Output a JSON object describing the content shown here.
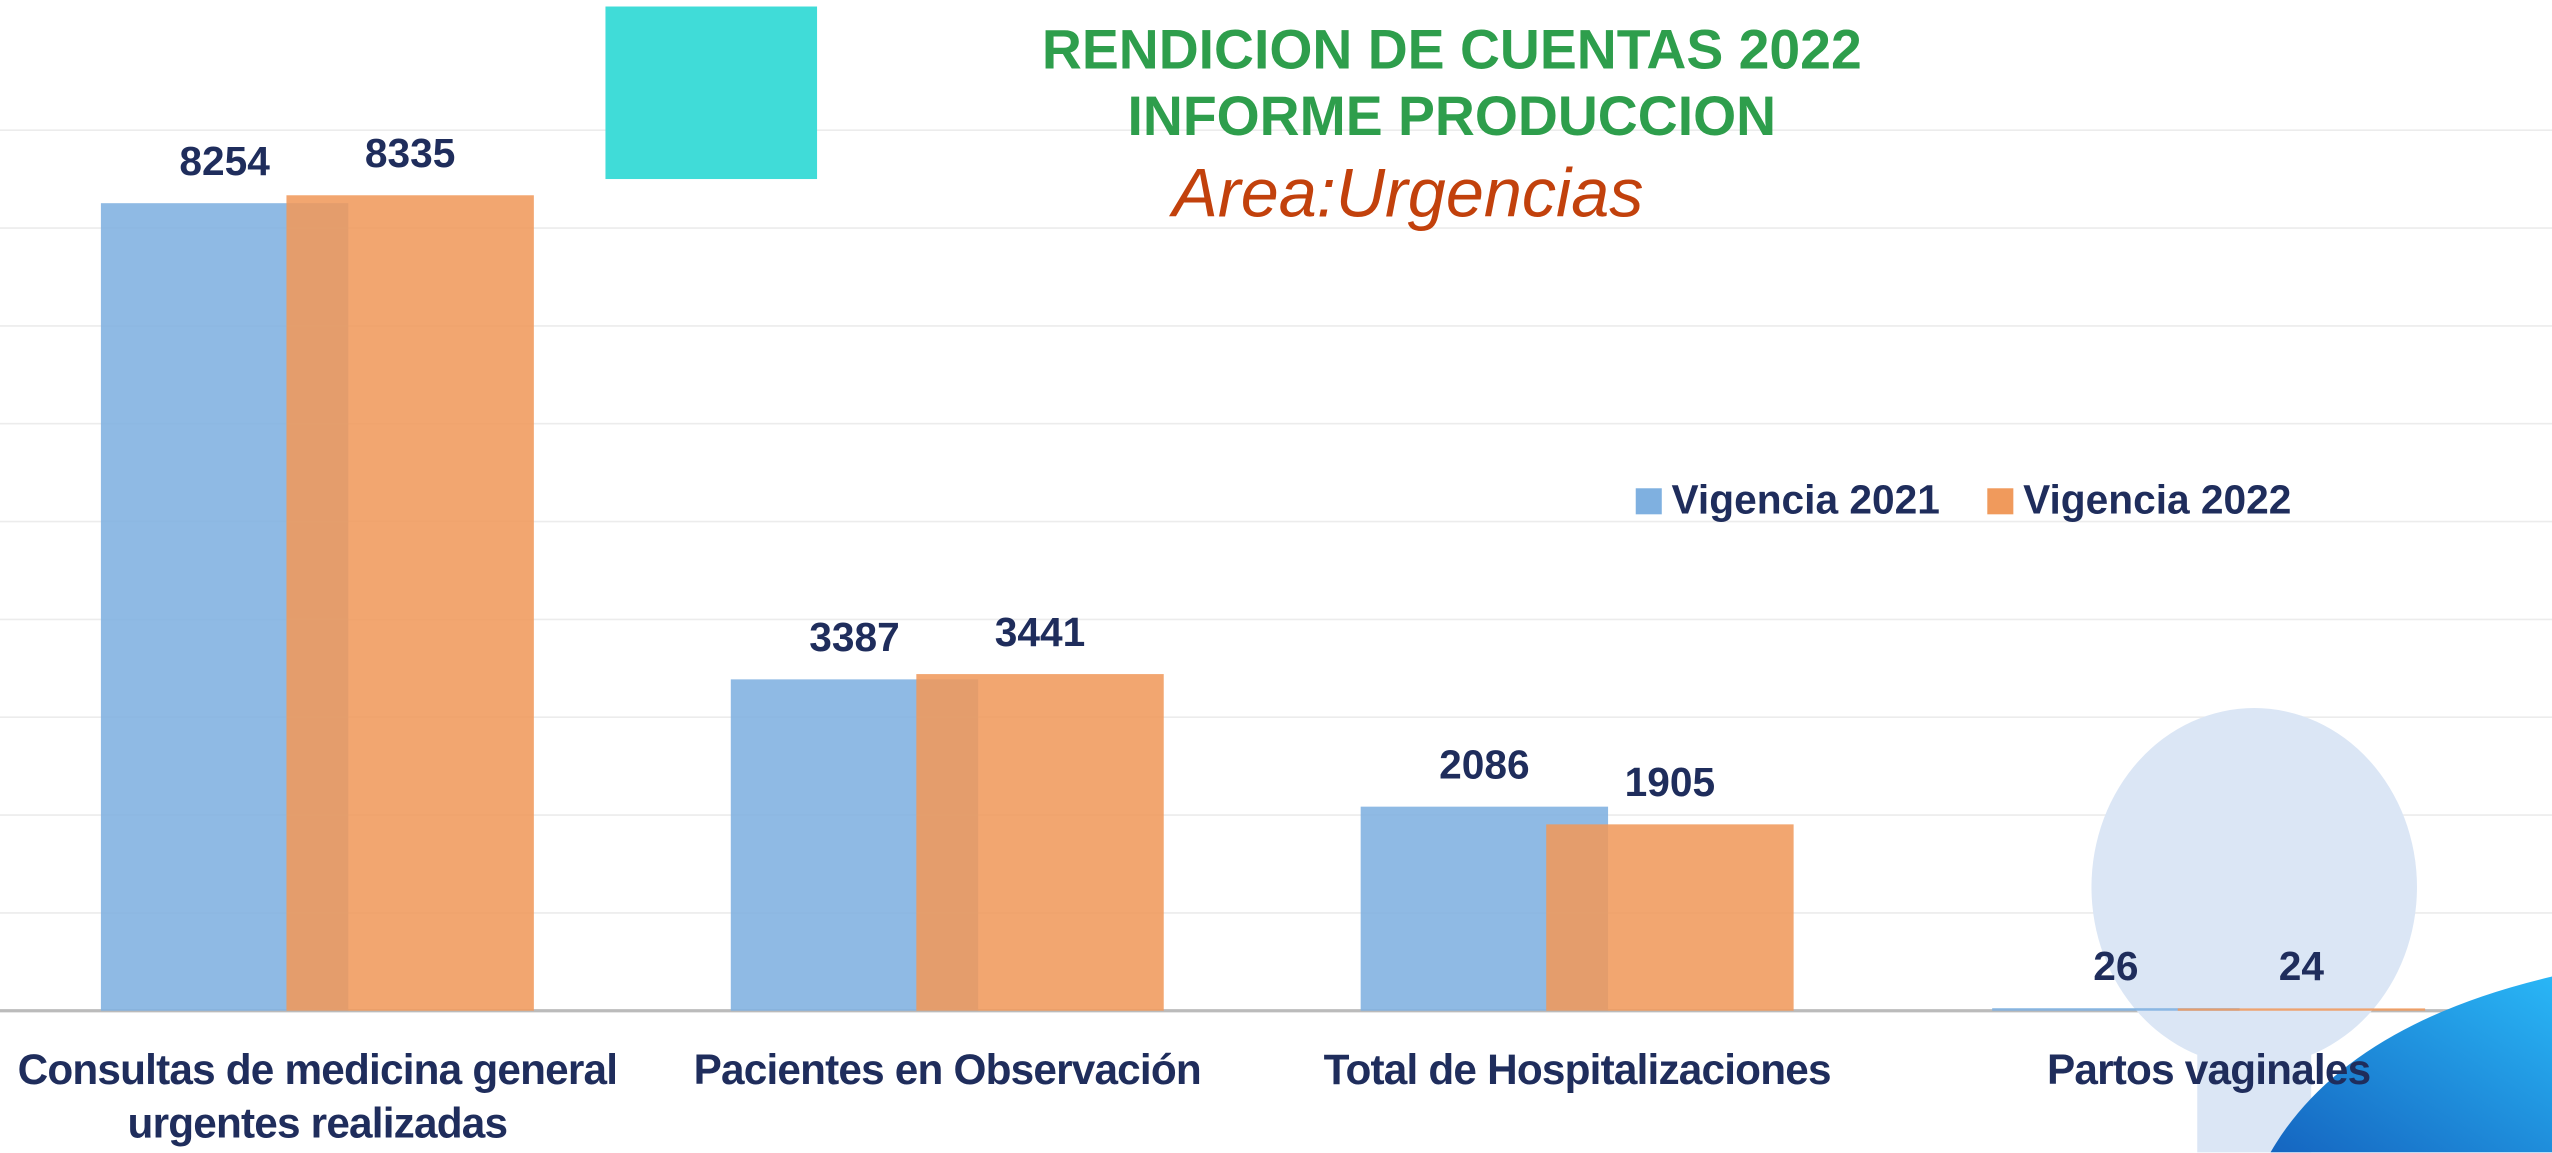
{
  "chart_data": {
    "type": "bar",
    "title": "RENDICION DE CUENTAS 2022",
    "subtitle": "INFORME PRODUCCION",
    "annotation": "Area:Urgencias",
    "categories": [
      "Consultas de medicina general urgentes realizadas",
      "Pacientes en Observación",
      "Total de Hospitalizaciones",
      "Partos vaginales"
    ],
    "series": [
      {
        "name": "Vigencia 2021",
        "color": "#7fb0e0",
        "values": [
          8254,
          3387,
          2086,
          26
        ]
      },
      {
        "name": "Vigencia 2022",
        "color": "#f09a5c",
        "values": [
          8335,
          3441,
          1905,
          24
        ]
      }
    ],
    "ylim": [
      0,
      9000
    ],
    "yticks": [
      0,
      1000,
      2000,
      3000,
      4000,
      5000,
      6000,
      7000,
      8000,
      9000
    ],
    "grid": true,
    "legend": "right"
  }
}
